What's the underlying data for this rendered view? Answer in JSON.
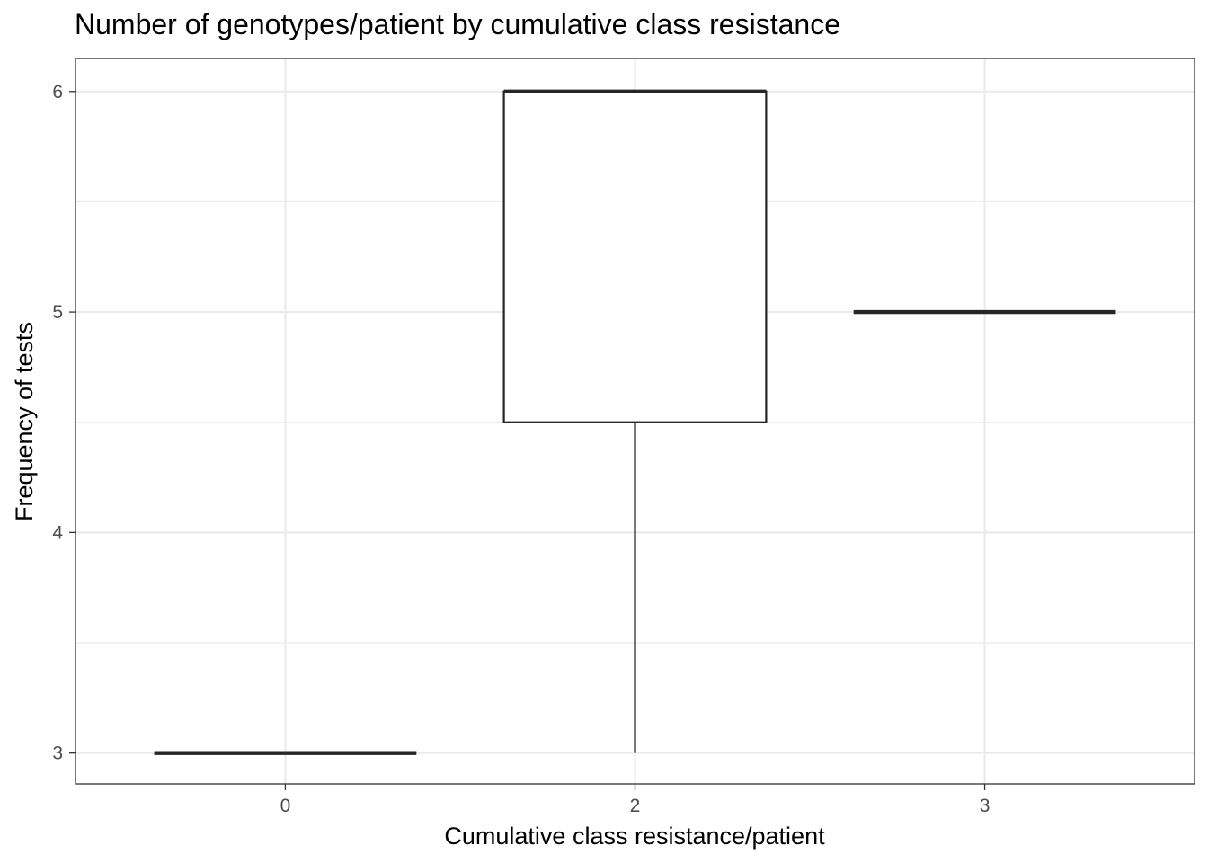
{
  "chart_data": {
    "type": "box",
    "title": "Number of genotypes/patient by cumulative class resistance",
    "xlabel": "Cumulative class resistance/patient",
    "ylabel": "Frequency of tests",
    "categories": [
      "0",
      "2",
      "3"
    ],
    "boxes": [
      {
        "category": "0",
        "min": 3,
        "q1": 3,
        "median": 3,
        "q3": 3,
        "max": 3
      },
      {
        "category": "2",
        "min": 3,
        "q1": 4.5,
        "median": 6,
        "q3": 6,
        "max": 6
      },
      {
        "category": "3",
        "min": 5,
        "q1": 5,
        "median": 5,
        "q3": 5,
        "max": 5
      }
    ],
    "ylim": [
      2.86,
      6.15
    ],
    "yticks": [
      3,
      4,
      5,
      6
    ],
    "grid": true,
    "legend": "none",
    "colors": {
      "box_outline": "#262626",
      "box_fill": "#ffffff",
      "grid": "#ebebeb",
      "panel_border": "#333333",
      "tick_label": "#4d4d4d"
    }
  }
}
